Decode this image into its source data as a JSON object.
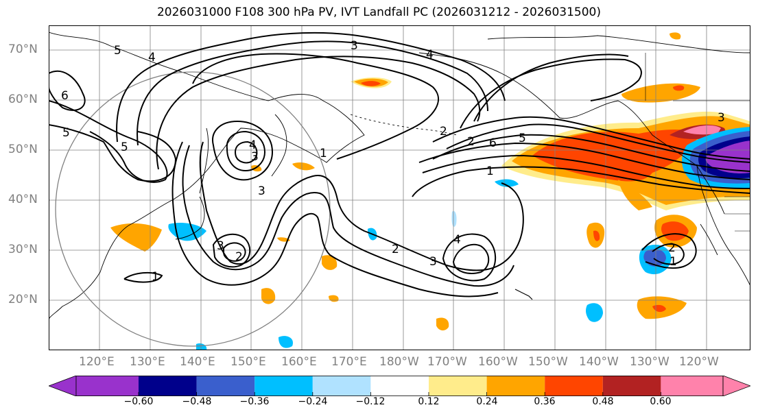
{
  "title": "2026031000 F108 300 hPa PV, IVT Landfall PC (2026031212 - 2026031500)",
  "lat_labels": [
    "70°N",
    "60°N",
    "50°N",
    "40°N",
    "30°N",
    "20°N"
  ],
  "lon_labels": [
    "120°E",
    "130°E",
    "140°E",
    "150°E",
    "160°E",
    "170°E",
    "180°W",
    "170°W",
    "160°W",
    "150°W",
    "140°W",
    "130°W",
    "120°W"
  ],
  "colorbar": {
    "colors": [
      "#9932cc",
      "#00008b",
      "#3a5fcd",
      "#00bfff",
      "#b0e2ff",
      "#ffffff",
      "#ffec8b",
      "#ffa500",
      "#ff4500",
      "#b22222",
      "#ff82ab"
    ],
    "tick_labels": [
      "−0.60",
      "−0.48",
      "−0.36",
      "−0.24",
      "−0.12",
      "0.12",
      "0.24",
      "0.36",
      "0.48",
      "0.60"
    ]
  },
  "contour_labels": [
    "5",
    "4",
    "3",
    "4",
    "6",
    "5",
    "5",
    "4",
    "3",
    "1",
    "3",
    "2",
    "2",
    "6",
    "5",
    "1",
    "2",
    "3",
    "2",
    "3",
    "4",
    "3",
    "1",
    "2",
    "1"
  ],
  "colors": {
    "contour": "#000000",
    "grid": "#808080",
    "coast": "#000000"
  }
}
